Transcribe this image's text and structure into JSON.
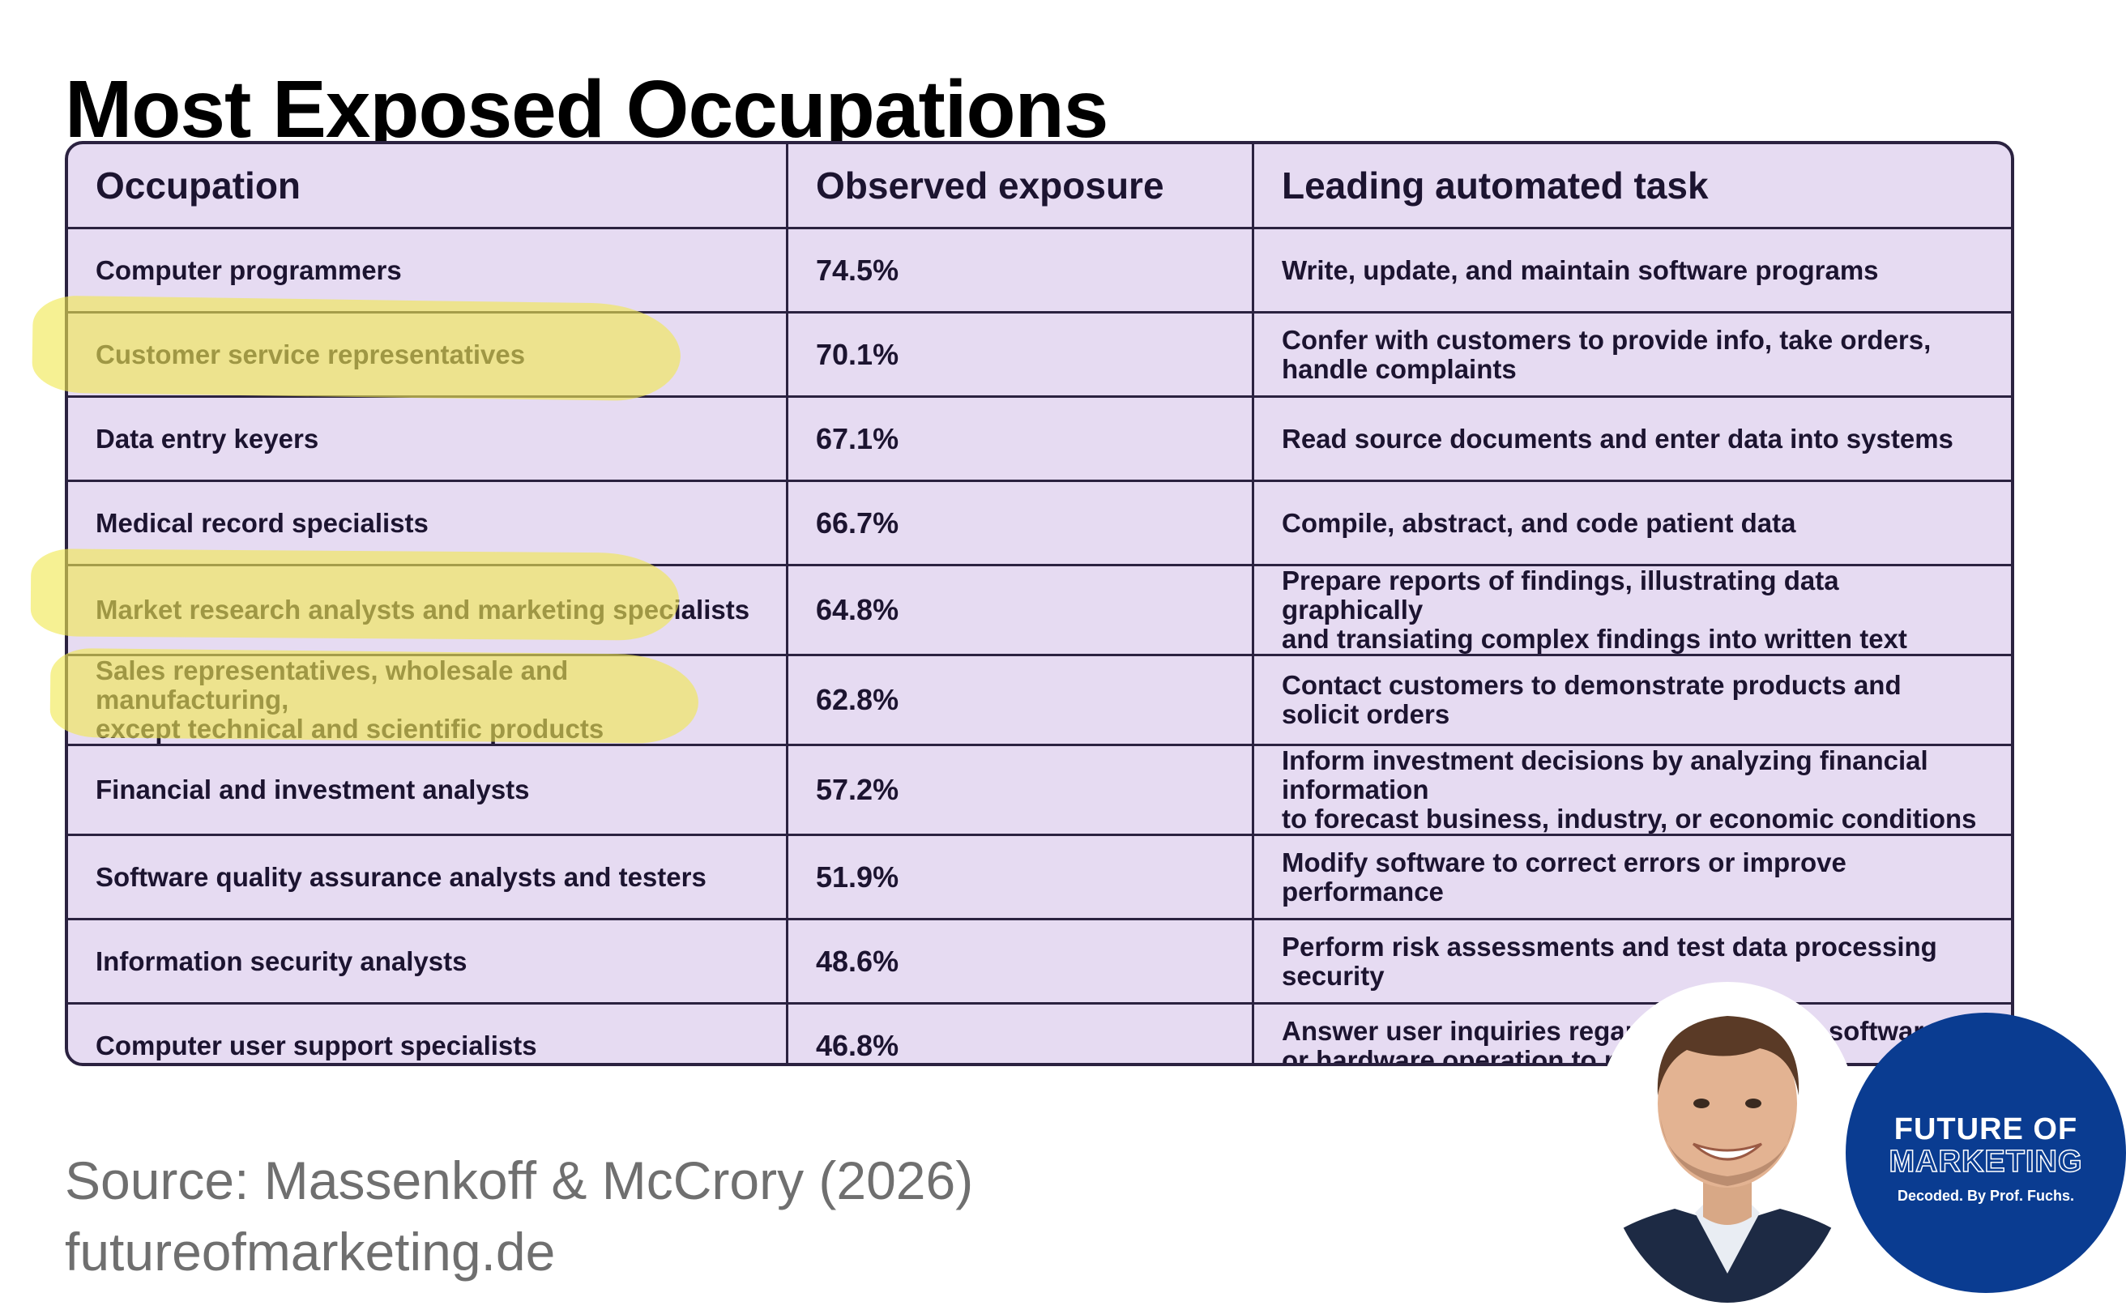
{
  "page": {
    "title": "Most Exposed Occupations",
    "source": "Source: Massenkoff & McCrory (2026)",
    "website": "futureofmarketing.de"
  },
  "table": {
    "headers": [
      "Occupation",
      "Observed exposure",
      "Leading automated task"
    ],
    "rows": [
      {
        "occupation": "Computer programmers",
        "exposure": "74.5%",
        "task": "Write, update, and maintain software programs"
      },
      {
        "occupation": "Customer service representatives",
        "exposure": "70.1%",
        "task": "Confer with customers to provide info, take orders, handle complaints"
      },
      {
        "occupation": "Data entry keyers",
        "exposure": "67.1%",
        "task": "Read source documents and enter data into systems"
      },
      {
        "occupation": "Medical record specialists",
        "exposure": "66.7%",
        "task": "Compile, abstract, and code patient data"
      },
      {
        "occupation": "Market research analysts and marketing specialists",
        "exposure": "64.8%",
        "task": "Prepare reports of findings, illustrating data graphically\nand transiating complex findings into written text"
      },
      {
        "occupation": "Sales representatives, wholesale and manufacturing,\nexcept technical and scientific products",
        "exposure": "62.8%",
        "task": "Contact customers to demonstrate products and solicit orders"
      },
      {
        "occupation": "Financial and investment analysts",
        "exposure": "57.2%",
        "task": "Inform investment decisions by analyzing financial information\nto forecast business, industry, or economic conditions"
      },
      {
        "occupation": "Software quality assurance analysts and testers",
        "exposure": "51.9%",
        "task": "Modify software to correct errors or improve performance"
      },
      {
        "occupation": "Information security analysts",
        "exposure": "48.6%",
        "task": "Perform risk assessments and test data processing security"
      },
      {
        "occupation": "Computer user support specialists",
        "exposure": "46.8%",
        "task": "Answer user inquiries regarding computer software\nor hardware operation to resolve problems"
      }
    ]
  },
  "badge": {
    "line1": "FUTURE OF",
    "line2": "MARKETING",
    "tagline": "Decoded. By Prof. Fuchs."
  },
  "colors": {
    "table_bg": "#e6dbf2",
    "table_border": "#2b2240",
    "highlight": "#f0e850",
    "badge_bg": "#0a3c91",
    "source_text": "#6f6f6f"
  }
}
